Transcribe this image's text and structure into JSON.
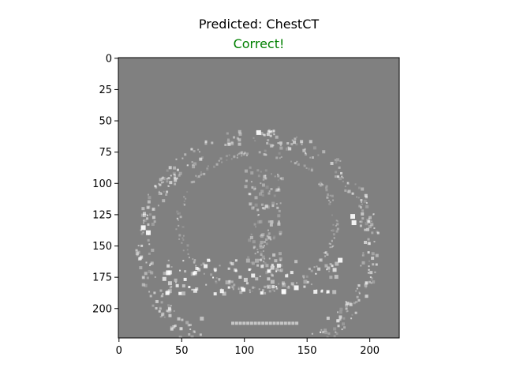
{
  "figure": {
    "title": "Predicted: ChestCT",
    "status": "Correct!",
    "status_color": "#008000",
    "image_background": "#808080",
    "image_content": "grayscale CT scan slice with bright speckle structures on gray background"
  },
  "axes": {
    "x_range": [
      0,
      224
    ],
    "y_range": [
      0,
      224
    ],
    "x_ticks": [
      {
        "value": 0,
        "label": "0"
      },
      {
        "value": 50,
        "label": "50"
      },
      {
        "value": 100,
        "label": "100"
      },
      {
        "value": 150,
        "label": "150"
      },
      {
        "value": 200,
        "label": "200"
      }
    ],
    "y_ticks": [
      {
        "value": 0,
        "label": "0"
      },
      {
        "value": 25,
        "label": "25"
      },
      {
        "value": 50,
        "label": "50"
      },
      {
        "value": 75,
        "label": "75"
      },
      {
        "value": 100,
        "label": "100"
      },
      {
        "value": 125,
        "label": "125"
      },
      {
        "value": 150,
        "label": "150"
      },
      {
        "value": 175,
        "label": "175"
      },
      {
        "value": 200,
        "label": "200"
      }
    ]
  }
}
